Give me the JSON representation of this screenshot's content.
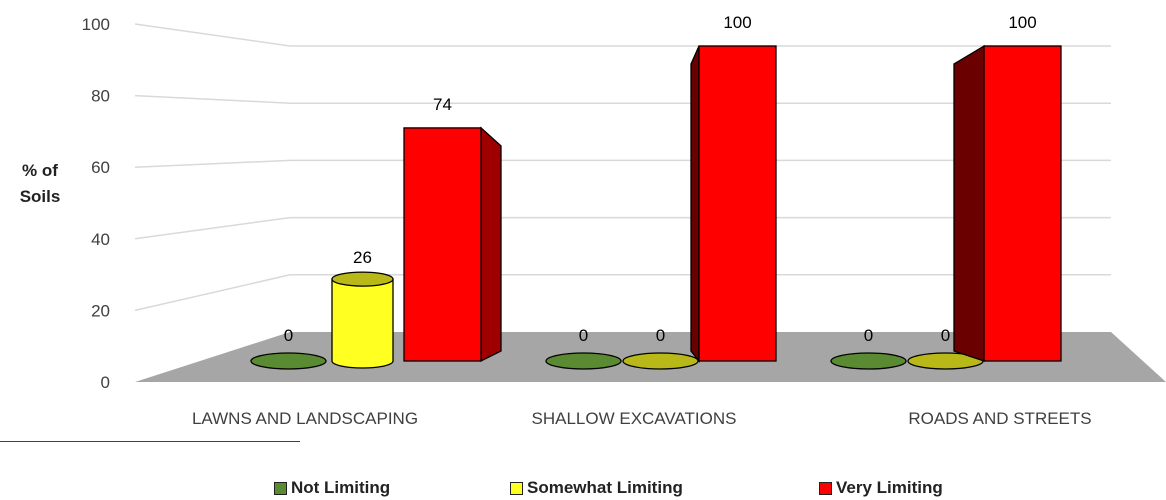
{
  "chart_data": {
    "type": "bar",
    "categories": [
      "LAWNS AND LANDSCAPING",
      "SHALLOW EXCAVATIONS",
      "ROADS AND STREETS"
    ],
    "series": [
      {
        "name": "Not Limiting",
        "values": [
          0,
          0,
          0
        ],
        "color": "#5a8a32"
      },
      {
        "name": "Somewhat Limiting",
        "values": [
          26,
          0,
          0
        ],
        "color": "#ffff22"
      },
      {
        "name": "Very Limiting",
        "values": [
          74,
          100,
          100
        ],
        "color": "#ff0000"
      }
    ],
    "data_labels": [
      [
        "0",
        "0",
        "0"
      ],
      [
        "26",
        "0",
        "0"
      ],
      [
        "74",
        "100",
        "100"
      ]
    ],
    "yticks": [
      "0",
      "20",
      "40",
      "60",
      "80",
      "100"
    ],
    "ylim": [
      0,
      100
    ],
    "ylabel_lines": [
      "% of",
      "Soils"
    ],
    "xlabel": "",
    "grid": true,
    "legend_position": "bottom",
    "floor_color": "#a6a6a6"
  }
}
